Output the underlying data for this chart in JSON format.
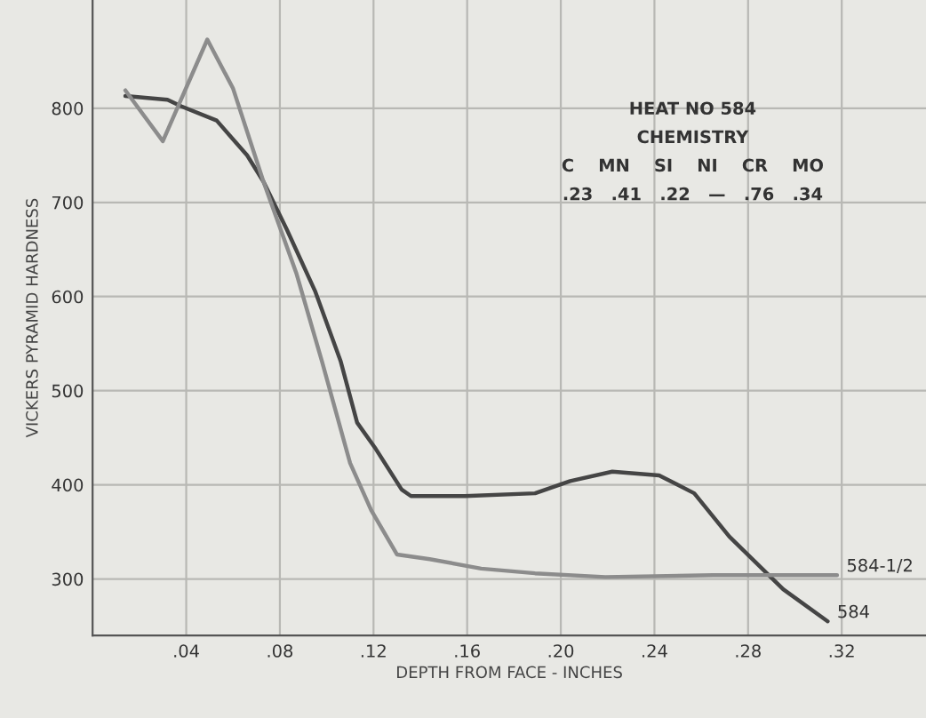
{
  "chart_data": {
    "type": "line",
    "xlabel": "DEPTH FROM FACE - INCHES",
    "ylabel": "VICKERS PYRAMID HARDNESS",
    "xlim": [
      0,
      0.356
    ],
    "ylim": [
      240,
      915
    ],
    "xticks": [
      {
        "value": 0.04,
        "label": ".04"
      },
      {
        "value": 0.08,
        "label": ".08"
      },
      {
        "value": 0.12,
        "label": ".12"
      },
      {
        "value": 0.16,
        "label": ".16"
      },
      {
        "value": 0.2,
        "label": ".20"
      },
      {
        "value": 0.24,
        "label": ".24"
      },
      {
        "value": 0.28,
        "label": ".28"
      },
      {
        "value": 0.32,
        "label": ".32"
      }
    ],
    "yticks": [
      300,
      400,
      500,
      600,
      700,
      800
    ],
    "grid": true,
    "legend": false,
    "marker": "none",
    "line_style": "solid",
    "series": [
      {
        "name": "584",
        "color": "#454545",
        "x": [
          0.014,
          0.032,
          0.038,
          0.053,
          0.066,
          0.073,
          0.083,
          0.095,
          0.106,
          0.113,
          0.121,
          0.132,
          0.136,
          0.159,
          0.189,
          0.204,
          0.222,
          0.242,
          0.257,
          0.272,
          0.295,
          0.314
        ],
        "values": [
          813,
          809,
          802,
          787,
          750,
          722,
          671,
          606,
          531,
          466,
          438,
          395,
          388,
          388,
          391,
          404,
          414,
          410,
          391,
          345,
          289,
          255
        ]
      },
      {
        "name": "584-1/2",
        "color": "#8c8c8c",
        "x": [
          0.014,
          0.03,
          0.049,
          0.06,
          0.073,
          0.087,
          0.098,
          0.11,
          0.119,
          0.13,
          0.144,
          0.166,
          0.189,
          0.219,
          0.265,
          0.318
        ],
        "values": [
          819,
          765,
          873,
          821,
          722,
          625,
          531,
          423,
          373,
          326,
          321,
          311,
          306,
          302,
          304,
          304
        ]
      }
    ],
    "annotations": [
      "HEAT NO 584",
      "CHEMISTRY",
      "C    MN    SI    NI    CR    MO",
      ".23   .41   .22   —   .76   .34"
    ]
  }
}
